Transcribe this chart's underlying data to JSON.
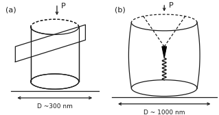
{
  "bg_color": "#ffffff",
  "line_color": "#1a1a1a",
  "label_a": "(a)",
  "label_b": "(b)",
  "dim_a": "D ~300 nm",
  "dim_b": "D ~ 1000 nm",
  "load_label": "P",
  "fig_width": 3.19,
  "fig_height": 1.68
}
